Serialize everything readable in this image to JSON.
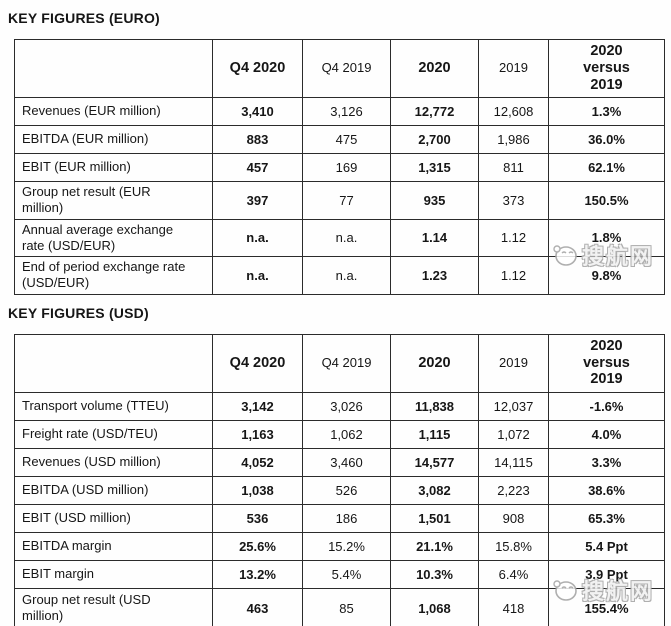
{
  "watermark": {
    "text": "搜航网"
  },
  "tables": [
    {
      "title": "KEY FIGURES (EURO)",
      "columns": [
        {
          "label": "",
          "bold": false
        },
        {
          "label": "Q4 2020",
          "bold": true
        },
        {
          "label": "Q4 2019",
          "bold": false
        },
        {
          "label": "2020",
          "bold": true
        },
        {
          "label": "2019",
          "bold": false
        },
        {
          "label": "2020 versus 2019",
          "bold": true
        }
      ],
      "rows": [
        {
          "label": "Revenues (EUR million)",
          "tall": false,
          "values": [
            "3,410",
            "3,126",
            "12,772",
            "12,608",
            "1.3%"
          ]
        },
        {
          "label": "EBITDA (EUR million)",
          "tall": false,
          "values": [
            "883",
            "475",
            "2,700",
            "1,986",
            "36.0%"
          ]
        },
        {
          "label": "EBIT (EUR million)",
          "tall": false,
          "values": [
            "457",
            "169",
            "1,315",
            "811",
            "62.1%"
          ]
        },
        {
          "label": "Group net result (EUR million)",
          "tall": true,
          "values": [
            "397",
            "77",
            "935",
            "373",
            "150.5%"
          ]
        },
        {
          "label": "Annual average exchange rate (USD/EUR)",
          "tall": true,
          "values": [
            "n.a.",
            "n.a.",
            "1.14",
            "1.12",
            "1.8%"
          ]
        },
        {
          "label": "End of period exchange rate (USD/EUR)",
          "tall": true,
          "values": [
            "n.a.",
            "n.a.",
            "1.23",
            "1.12",
            "9.8%"
          ]
        }
      ]
    },
    {
      "title": "KEY FIGURES (USD)",
      "columns": [
        {
          "label": "",
          "bold": false
        },
        {
          "label": "Q4 2020",
          "bold": true
        },
        {
          "label": "Q4 2019",
          "bold": false
        },
        {
          "label": "2020",
          "bold": true
        },
        {
          "label": "2019",
          "bold": false
        },
        {
          "label": "2020 versus 2019",
          "bold": true
        }
      ],
      "rows": [
        {
          "label": "Transport volume (TTEU)",
          "tall": false,
          "values": [
            "3,142",
            "3,026",
            "11,838",
            "12,037",
            "-1.6%"
          ]
        },
        {
          "label": "Freight rate (USD/TEU)",
          "tall": false,
          "values": [
            "1,163",
            "1,062",
            "1,115",
            "1,072",
            "4.0%"
          ]
        },
        {
          "label": "Revenues (USD million)",
          "tall": false,
          "values": [
            "4,052",
            "3,460",
            "14,577",
            "14,115",
            "3.3%"
          ]
        },
        {
          "label": "EBITDA (USD million)",
          "tall": false,
          "values": [
            "1,038",
            "526",
            "3,082",
            "2,223",
            "38.6%"
          ]
        },
        {
          "label": "EBIT (USD million)",
          "tall": false,
          "values": [
            "536",
            "186",
            "1,501",
            "908",
            "65.3%"
          ]
        },
        {
          "label": "EBITDA margin",
          "tall": false,
          "values": [
            "25.6%",
            "15.2%",
            "21.1%",
            "15.8%",
            "5.4 Ppt"
          ]
        },
        {
          "label": "EBIT margin",
          "tall": false,
          "values": [
            "13.2%",
            "5.4%",
            "10.3%",
            "6.4%",
            "3.9 Ppt"
          ]
        },
        {
          "label": "Group net result (USD million)",
          "tall2": true,
          "values": [
            "463",
            "85",
            "1,068",
            "418",
            "155.4%"
          ]
        }
      ]
    }
  ]
}
